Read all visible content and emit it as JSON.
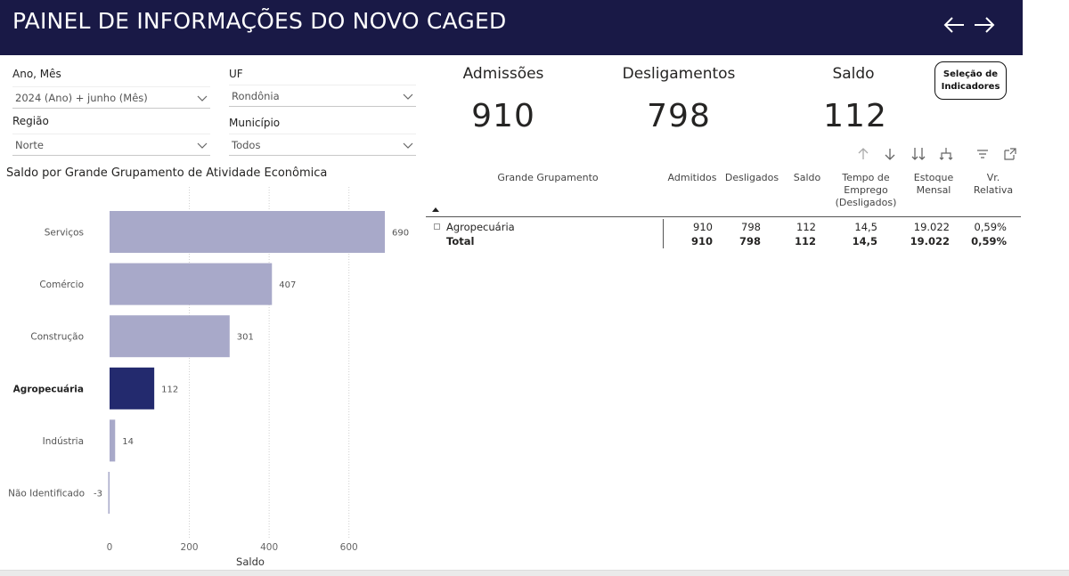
{
  "header": {
    "title": "PAINEL DE INFORMAÇÕES DO NOVO CAGED"
  },
  "filters": {
    "ano_mes": {
      "label": "Ano, Mês",
      "value": "2024 (Ano) + junho (Mês)"
    },
    "regiao": {
      "label": "Região",
      "value": "Norte"
    },
    "uf": {
      "label": "UF",
      "value": "Rondônia"
    },
    "municipio": {
      "label": "Município",
      "value": "Todos"
    }
  },
  "kpis": {
    "admissoes": {
      "label": "Admissões",
      "value": "910"
    },
    "desligamentos": {
      "label": "Desligamentos",
      "value": "798"
    },
    "saldo": {
      "label": "Saldo",
      "value": "112"
    }
  },
  "selecao_button": {
    "line1": "Seleção de",
    "line2": "Indicadores"
  },
  "chart_title": "Saldo por Grande Grupamento de Atividade Econômica",
  "chart_data": {
    "type": "bar",
    "orientation": "horizontal",
    "categories": [
      "Serviços",
      "Comércio",
      "Construção",
      "Agropecuária",
      "Indústria",
      "Não Identificado"
    ],
    "values": [
      690,
      407,
      301,
      112,
      14,
      -3
    ],
    "highlighted": "Agropecuária",
    "xlabel": "Saldo",
    "xlim": [
      0,
      700
    ],
    "xticks": [
      0,
      200,
      400,
      600
    ],
    "colors": {
      "bar": "#a8a9c9",
      "highlight": "#232a6e"
    },
    "grid": "vertical dotted"
  },
  "table": {
    "columns": [
      "Grande Grupamento",
      "Admitidos",
      "Desligados",
      "Saldo",
      "Tempo de Emprego (Desligados)",
      "Estoque Mensal",
      "Vr. Relativa"
    ],
    "col_head_lines": {
      "tempo": [
        "Tempo de",
        "Emprego",
        "(Desligados)"
      ],
      "estoque": [
        "Estoque",
        "Mensal"
      ],
      "vr": [
        "Vr.",
        "Relativa"
      ]
    },
    "rows": [
      {
        "grupamento": "Agropecuária",
        "admitidos": "910",
        "desligados": "798",
        "saldo": "112",
        "tempo": "14,5",
        "estoque": "19.022",
        "vr": "0,59%"
      }
    ],
    "total": {
      "grupamento": "Total",
      "admitidos": "910",
      "desligados": "798",
      "saldo": "112",
      "tempo": "14,5",
      "estoque": "19.022",
      "vr": "0,59%"
    }
  },
  "colors": {
    "header_bg": "#191946",
    "accent": "#232a6e"
  }
}
